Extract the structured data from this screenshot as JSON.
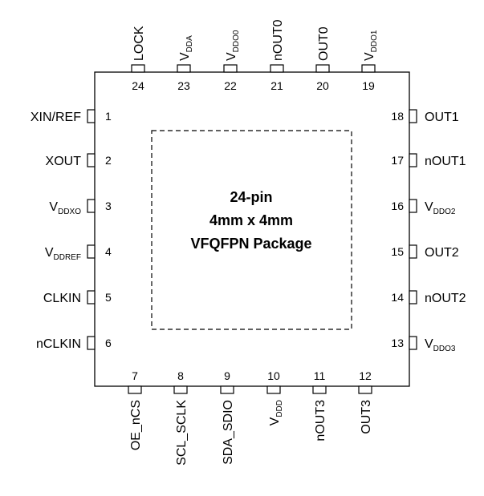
{
  "package": {
    "title_lines": [
      "24-pin",
      "4mm x 4mm",
      "VFQFPN Package"
    ]
  },
  "pins": {
    "left": [
      {
        "num": "1",
        "name": "XIN/REF",
        "sub": ""
      },
      {
        "num": "2",
        "name": "XOUT",
        "sub": ""
      },
      {
        "num": "3",
        "name": "V",
        "sub": "DDXO"
      },
      {
        "num": "4",
        "name": "V",
        "sub": "DDREF"
      },
      {
        "num": "5",
        "name": "CLKIN",
        "sub": ""
      },
      {
        "num": "6",
        "name": "nCLKIN",
        "sub": ""
      }
    ],
    "bottom": [
      {
        "num": "7",
        "name": "OE_nCS",
        "sub": ""
      },
      {
        "num": "8",
        "name": "SCL_SCLK",
        "sub": ""
      },
      {
        "num": "9",
        "name": "SDA_SDIO",
        "sub": ""
      },
      {
        "num": "10",
        "name": "V",
        "sub": "DDD"
      },
      {
        "num": "11",
        "name": "nOUT3",
        "sub": ""
      },
      {
        "num": "12",
        "name": "OUT3",
        "sub": ""
      }
    ],
    "right": [
      {
        "num": "18",
        "name": "OUT1",
        "sub": ""
      },
      {
        "num": "17",
        "name": "nOUT1",
        "sub": ""
      },
      {
        "num": "16",
        "name": "V",
        "sub": "DDO2"
      },
      {
        "num": "15",
        "name": "OUT2",
        "sub": ""
      },
      {
        "num": "14",
        "name": "nOUT2",
        "sub": ""
      },
      {
        "num": "13",
        "name": "V",
        "sub": "DDO3"
      }
    ],
    "top": [
      {
        "num": "24",
        "name": "LOCK",
        "sub": ""
      },
      {
        "num": "23",
        "name": "V",
        "sub": "DDA"
      },
      {
        "num": "22",
        "name": "V",
        "sub": "DDO0"
      },
      {
        "num": "21",
        "name": "nOUT0",
        "sub": ""
      },
      {
        "num": "20",
        "name": "OUT0",
        "sub": ""
      },
      {
        "num": "19",
        "name": "V",
        "sub": "DDO1"
      }
    ]
  }
}
